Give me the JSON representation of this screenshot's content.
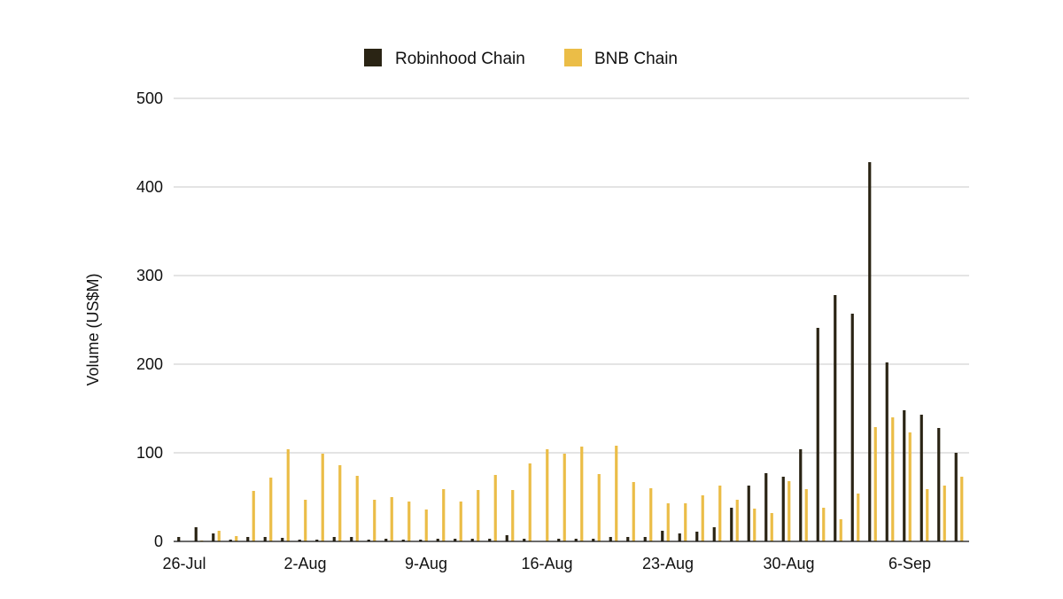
{
  "chart_data": {
    "type": "bar",
    "title": "",
    "xlabel": "",
    "ylabel": "Volume (US$M)",
    "ylim": [
      0,
      500
    ],
    "yticks": [
      0,
      100,
      200,
      300,
      400,
      500
    ],
    "grid": true,
    "legend_position": "top-center",
    "x_start": "26-Jul",
    "categories": [
      "26-Jul",
      "27-Jul",
      "28-Jul",
      "29-Jul",
      "30-Jul",
      "31-Jul",
      "1-Aug",
      "2-Aug",
      "3-Aug",
      "4-Aug",
      "5-Aug",
      "6-Aug",
      "7-Aug",
      "8-Aug",
      "9-Aug",
      "10-Aug",
      "11-Aug",
      "12-Aug",
      "13-Aug",
      "14-Aug",
      "15-Aug",
      "16-Aug",
      "17-Aug",
      "18-Aug",
      "19-Aug",
      "20-Aug",
      "21-Aug",
      "22-Aug",
      "23-Aug",
      "24-Aug",
      "25-Aug",
      "26-Aug",
      "27-Aug",
      "28-Aug",
      "29-Aug",
      "30-Aug",
      "31-Aug",
      "1-Sep",
      "2-Sep",
      "3-Sep",
      "4-Sep",
      "5-Sep",
      "6-Sep",
      "7-Sep",
      "8-Sep",
      "9-Sep"
    ],
    "x_tick_labels": [
      {
        "index": 0,
        "label": "26-Jul"
      },
      {
        "index": 7,
        "label": "2-Aug"
      },
      {
        "index": 14,
        "label": "9-Aug"
      },
      {
        "index": 21,
        "label": "16-Aug"
      },
      {
        "index": 28,
        "label": "23-Aug"
      },
      {
        "index": 35,
        "label": "30-Aug"
      },
      {
        "index": 42,
        "label": "6-Sep"
      }
    ],
    "series": [
      {
        "name": "Robinhood Chain",
        "color": "#2a2414",
        "values": [
          5,
          16,
          9,
          2,
          5,
          5,
          4,
          2,
          2,
          5,
          5,
          2,
          3,
          2,
          2,
          3,
          3,
          3,
          3,
          7,
          3,
          0,
          3,
          3,
          3,
          5,
          5,
          5,
          12,
          9,
          11,
          16,
          38,
          63,
          77,
          73,
          104,
          241,
          278,
          257,
          428,
          202,
          148,
          143,
          128,
          100
        ]
      },
      {
        "name": "BNB Chain",
        "color": "#ebbd47",
        "values": [
          0,
          1,
          12,
          6,
          57,
          72,
          104,
          47,
          99,
          86,
          74,
          47,
          50,
          45,
          36,
          59,
          45,
          58,
          75,
          58,
          88,
          104,
          99,
          107,
          76,
          108,
          67,
          60,
          43,
          43,
          52,
          63,
          47,
          37,
          32,
          68,
          59,
          38,
          25,
          54,
          129,
          140,
          123,
          59,
          63,
          73
        ]
      }
    ]
  }
}
